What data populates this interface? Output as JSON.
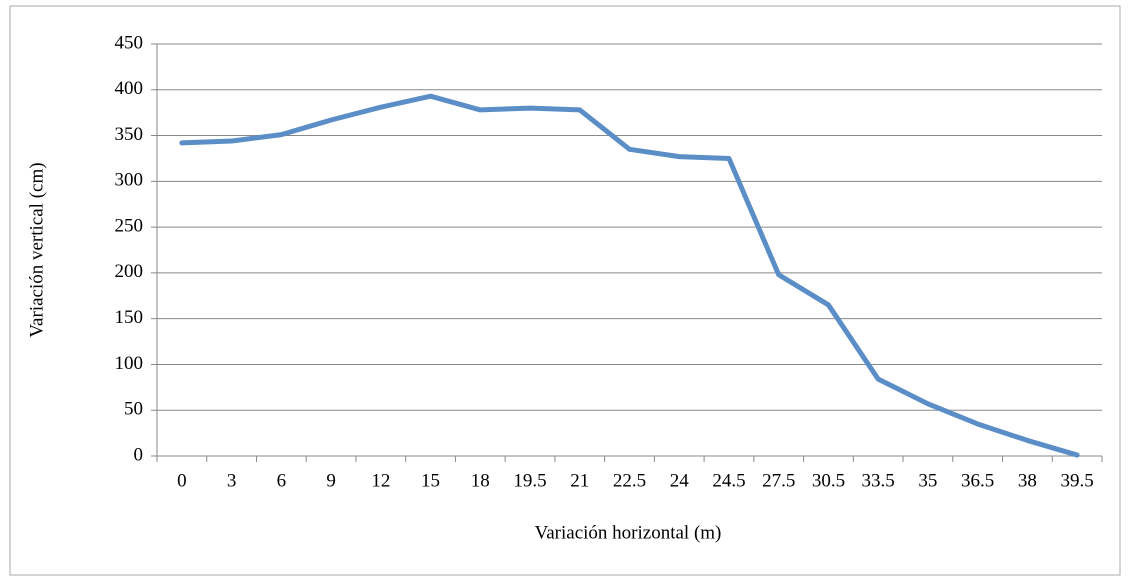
{
  "chart_data": {
    "type": "line",
    "xlabel": "Variación horizontal (m)",
    "ylabel": "Variación vertical (cm)",
    "categories": [
      "0",
      "3",
      "6",
      "9",
      "12",
      "15",
      "18",
      "19.5",
      "21",
      "22.5",
      "24",
      "24.5",
      "27.5",
      "30.5",
      "33.5",
      "35",
      "36.5",
      "38",
      "39.5"
    ],
    "series": [
      {
        "name": "Variación vertical",
        "color": "#5b8ec7",
        "values": [
          342,
          344,
          351,
          367,
          381,
          393,
          378,
          380,
          378,
          335,
          327,
          325,
          198,
          165,
          84,
          57,
          35,
          17,
          1
        ]
      }
    ],
    "ylim": [
      0,
      450
    ],
    "yticks": [
      0,
      50,
      100,
      150,
      200,
      250,
      300,
      350,
      400,
      450
    ],
    "grid": true
  }
}
